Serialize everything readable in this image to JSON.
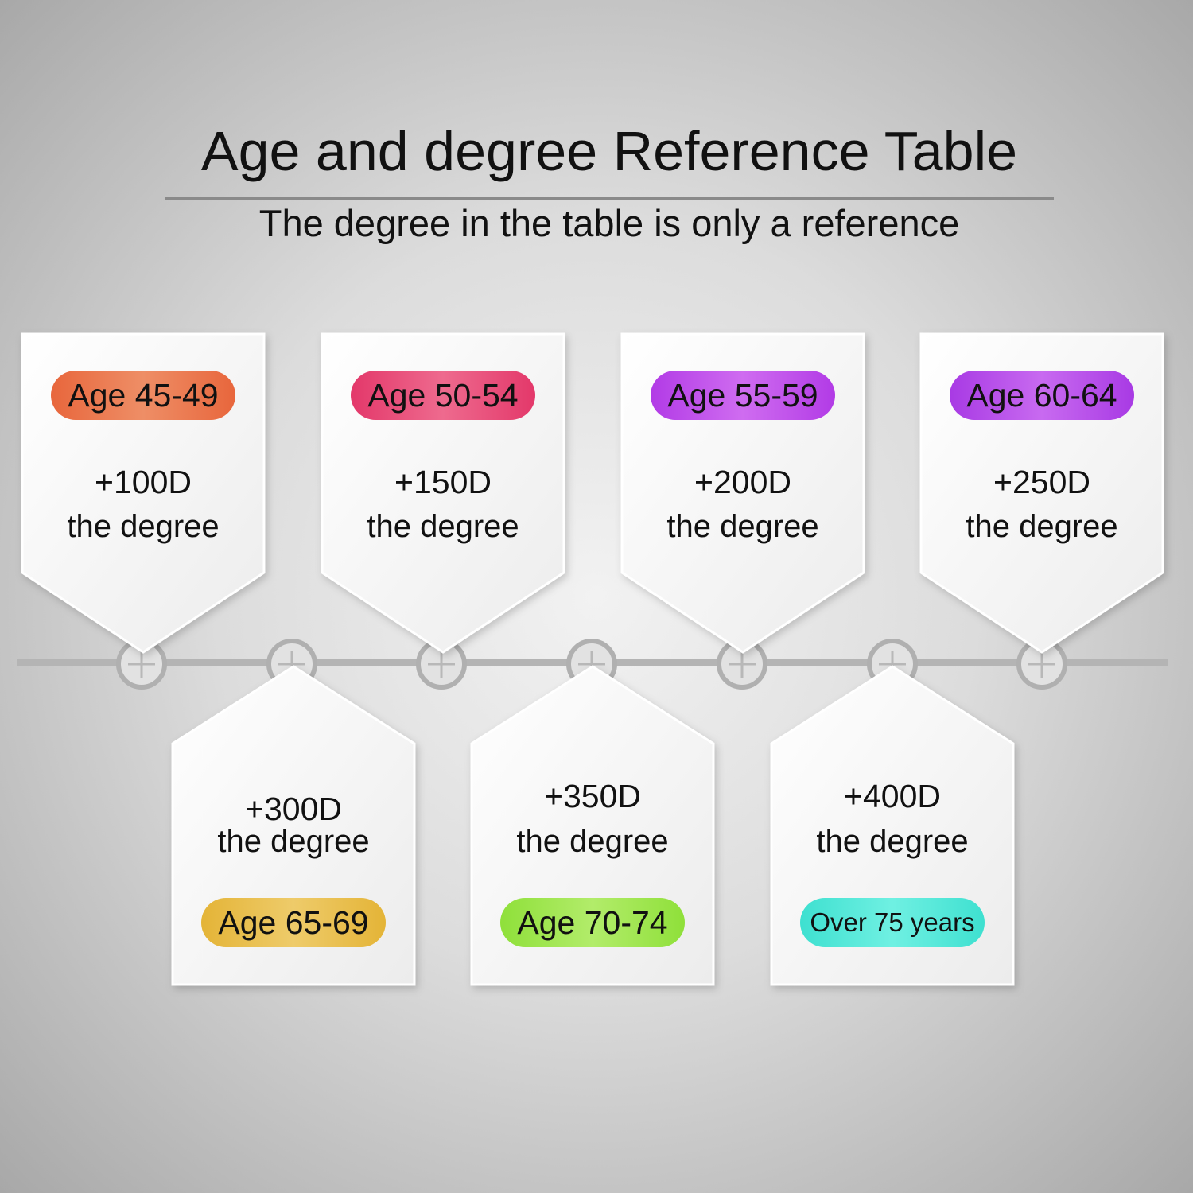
{
  "header": {
    "title": "Age and degree Reference Table",
    "subtitle": "The degree in the table is only a reference"
  },
  "top_cards": [
    {
      "age": "Age 45-49",
      "value": "+100D",
      "label": "the degree",
      "color": "#e8663c",
      "color_light": "#ee8e66"
    },
    {
      "age": "Age 50-54",
      "value": "+150D",
      "label": "the degree",
      "color": "#e3386a",
      "color_light": "#ee6a8e"
    },
    {
      "age": "Age 55-59",
      "value": "+200D",
      "label": "the degree",
      "color": "#b23be6",
      "color_light": "#cf6cf0"
    },
    {
      "age": "Age 60-64",
      "value": "+250D",
      "label": "the degree",
      "color": "#a83ae4",
      "color_light": "#c86af0"
    }
  ],
  "bottom_cards": [
    {
      "age": "Age 65-69",
      "value": "+300D",
      "label": "the degree",
      "color": "#e4b437",
      "color_light": "#eecb6a"
    },
    {
      "age": "Age 70-74",
      "value": "+350D",
      "label": "the degree",
      "color": "#8fe03a",
      "color_light": "#b2ec6a"
    },
    {
      "age": "Over 75 years",
      "value": "+400D",
      "label": "the degree",
      "color": "#3ee0d0",
      "color_light": "#6ff0e2"
    }
  ],
  "timeline": {
    "line_color": "#b4b4b4",
    "node_icon": "crosshair-circle-icon"
  }
}
